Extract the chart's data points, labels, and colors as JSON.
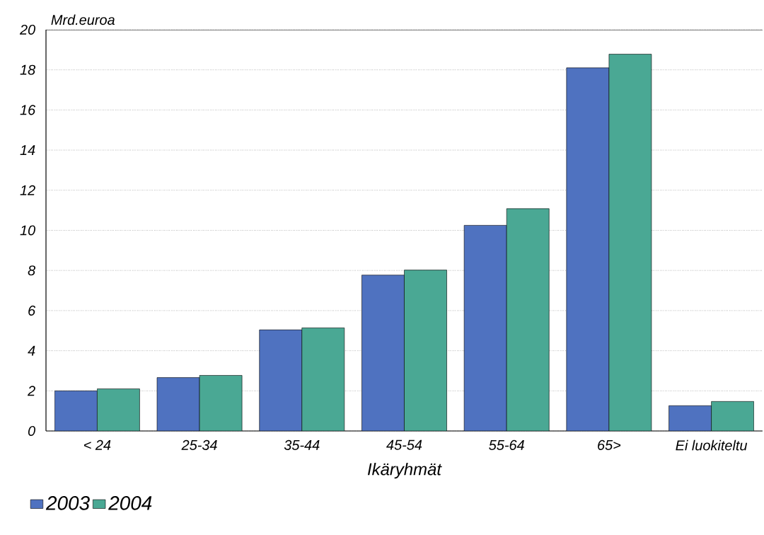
{
  "chart_data": {
    "type": "bar",
    "ylabel": "Mrd.euroa",
    "xlabel": "Ikäryhmät",
    "categories": [
      "< 24",
      "25-34",
      "35-44",
      "45-54",
      "55-64",
      "65>",
      "Ei luokiteltu"
    ],
    "series": [
      {
        "name": "2003",
        "color": "#4f72c0",
        "values": [
          2.0,
          2.66,
          5.04,
          7.77,
          10.25,
          18.1,
          1.26
        ]
      },
      {
        "name": "2004",
        "color": "#4aa894",
        "values": [
          2.1,
          2.77,
          5.14,
          8.02,
          11.08,
          18.78,
          1.47
        ]
      }
    ],
    "ylim": [
      0,
      20
    ],
    "yticks": [
      0,
      2,
      4,
      6,
      8,
      10,
      12,
      14,
      16,
      18,
      20
    ],
    "grid": "y",
    "legend": "bottom left"
  }
}
